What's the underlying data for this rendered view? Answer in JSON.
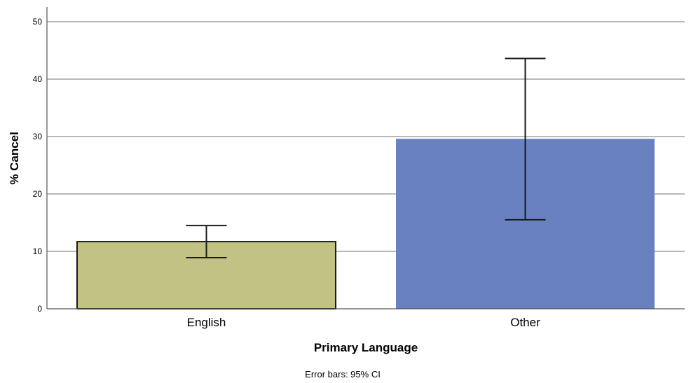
{
  "chart_data": {
    "type": "bar",
    "categories": [
      "English",
      "Other"
    ],
    "values": [
      11.7,
      29.6
    ],
    "error_bars": {
      "lower": [
        8.9,
        15.5
      ],
      "upper": [
        14.5,
        43.6
      ]
    },
    "bar_colors": [
      "#c2c283",
      "#6981c1"
    ],
    "bar_outline": [
      "#1a1a1a",
      "none"
    ],
    "xlabel": "Primary Language",
    "ylabel": "% Cancel",
    "ylim": [
      0,
      50
    ],
    "yticks": [
      0,
      10,
      20,
      30,
      40,
      50
    ],
    "grid": true,
    "gridline_color": "#a0a0a0",
    "footnote": "Error bars: 95% CI"
  }
}
